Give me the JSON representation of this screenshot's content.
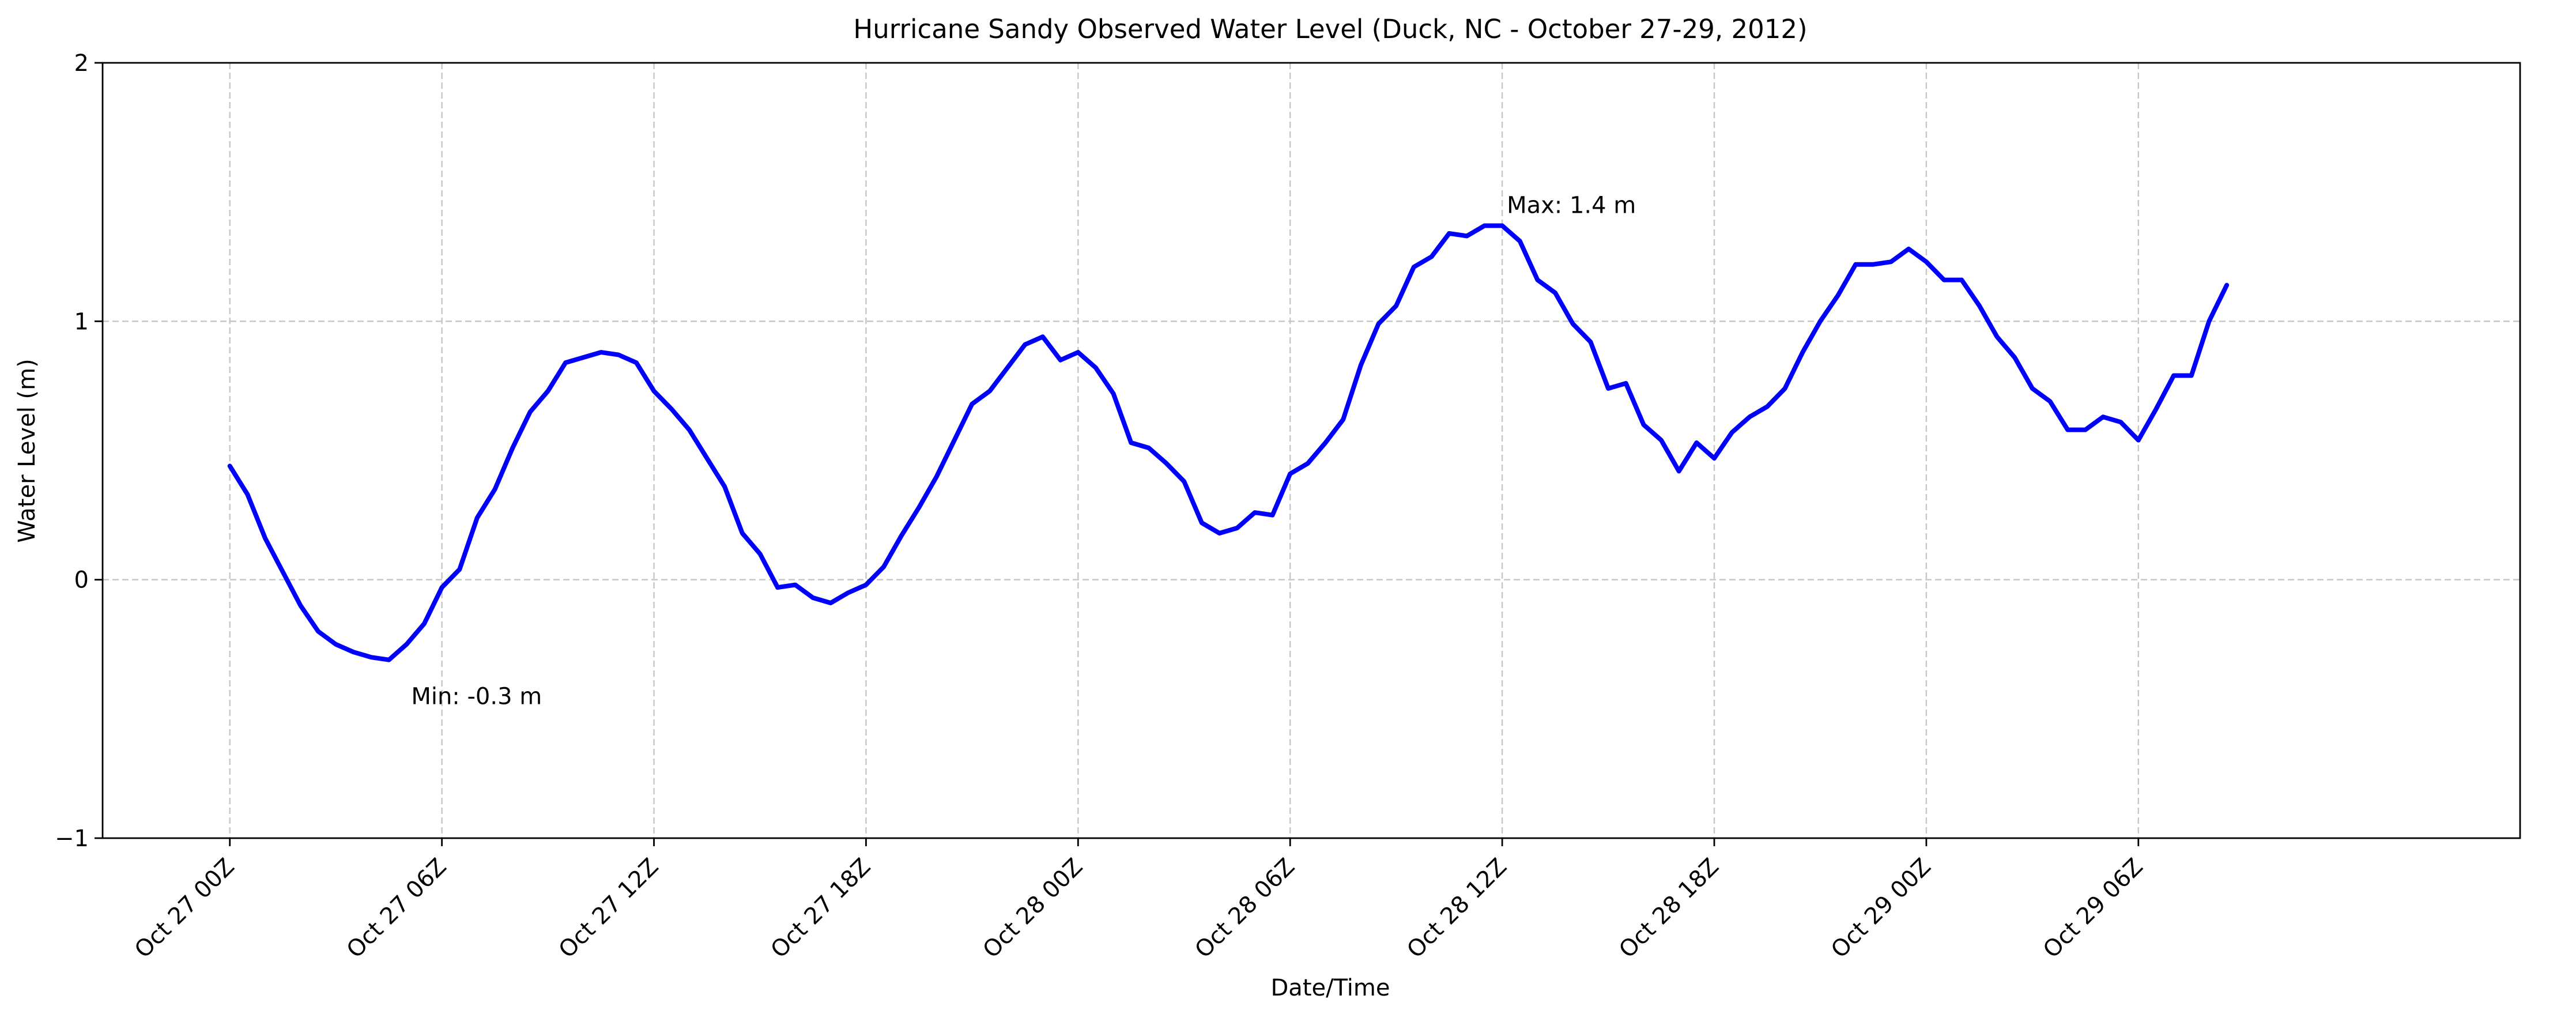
{
  "chart_data": {
    "type": "line",
    "title": "Hurricane Sandy Observed Water Level (Duck, NC - October 27-29, 2012)",
    "xlabel": "Date/Time",
    "ylabel": "Water Level (m)",
    "ylim": [
      -1,
      2
    ],
    "xlim": [
      "2012-10-26T20:24Z",
      "2012-10-29T16:48Z"
    ],
    "grid": true,
    "x_ticks": [
      "Oct 27 00Z",
      "Oct 27 06Z",
      "Oct 27 12Z",
      "Oct 27 18Z",
      "Oct 28 00Z",
      "Oct 28 06Z",
      "Oct 28 12Z",
      "Oct 28 18Z",
      "Oct 29 00Z",
      "Oct 29 06Z"
    ],
    "y_ticks": [
      "−1",
      "0",
      "1",
      "2"
    ],
    "series": [
      {
        "color": "#0000ff",
        "x": [
          "2012-10-27T00:00Z",
          "2012-10-27T00:30Z",
          "2012-10-27T01:00Z",
          "2012-10-27T01:30Z",
          "2012-10-27T02:00Z",
          "2012-10-27T02:30Z",
          "2012-10-27T03:00Z",
          "2012-10-27T03:30Z",
          "2012-10-27T04:00Z",
          "2012-10-27T04:30Z",
          "2012-10-27T05:00Z",
          "2012-10-27T05:30Z",
          "2012-10-27T06:00Z",
          "2012-10-27T06:30Z",
          "2012-10-27T07:00Z",
          "2012-10-27T07:30Z",
          "2012-10-27T08:00Z",
          "2012-10-27T08:30Z",
          "2012-10-27T09:00Z",
          "2012-10-27T09:30Z",
          "2012-10-27T10:00Z",
          "2012-10-27T10:30Z",
          "2012-10-27T11:00Z",
          "2012-10-27T11:30Z",
          "2012-10-27T12:00Z",
          "2012-10-27T12:30Z",
          "2012-10-27T13:00Z",
          "2012-10-27T13:30Z",
          "2012-10-27T14:00Z",
          "2012-10-27T14:30Z",
          "2012-10-27T15:00Z",
          "2012-10-27T15:30Z",
          "2012-10-27T16:00Z",
          "2012-10-27T16:30Z",
          "2012-10-27T17:00Z",
          "2012-10-27T17:30Z",
          "2012-10-27T18:00Z",
          "2012-10-27T18:30Z",
          "2012-10-27T19:00Z",
          "2012-10-27T19:30Z",
          "2012-10-27T20:00Z",
          "2012-10-27T20:30Z",
          "2012-10-27T21:00Z",
          "2012-10-27T21:30Z",
          "2012-10-27T22:00Z",
          "2012-10-27T22:30Z",
          "2012-10-27T23:00Z",
          "2012-10-27T23:30Z",
          "2012-10-28T00:00Z",
          "2012-10-28T00:30Z",
          "2012-10-28T01:00Z",
          "2012-10-28T01:30Z",
          "2012-10-28T02:00Z",
          "2012-10-28T02:30Z",
          "2012-10-28T03:00Z",
          "2012-10-28T03:30Z",
          "2012-10-28T04:00Z",
          "2012-10-28T04:30Z",
          "2012-10-28T05:00Z",
          "2012-10-28T05:30Z",
          "2012-10-28T06:00Z",
          "2012-10-28T06:30Z",
          "2012-10-28T07:00Z",
          "2012-10-28T07:30Z",
          "2012-10-28T08:00Z",
          "2012-10-28T08:30Z",
          "2012-10-28T09:00Z",
          "2012-10-28T09:30Z",
          "2012-10-28T10:00Z",
          "2012-10-28T10:30Z",
          "2012-10-28T11:00Z",
          "2012-10-28T11:30Z",
          "2012-10-28T12:00Z",
          "2012-10-28T12:30Z",
          "2012-10-28T13:00Z",
          "2012-10-28T13:30Z",
          "2012-10-28T14:00Z",
          "2012-10-28T14:30Z",
          "2012-10-28T15:00Z",
          "2012-10-28T15:30Z",
          "2012-10-28T16:00Z",
          "2012-10-28T16:30Z",
          "2012-10-28T17:00Z",
          "2012-10-28T17:30Z",
          "2012-10-28T18:00Z",
          "2012-10-28T18:30Z",
          "2012-10-28T19:00Z",
          "2012-10-28T19:30Z",
          "2012-10-28T20:00Z",
          "2012-10-28T20:30Z",
          "2012-10-28T21:00Z",
          "2012-10-28T21:30Z",
          "2012-10-28T22:00Z",
          "2012-10-28T22:30Z",
          "2012-10-28T23:00Z",
          "2012-10-28T23:30Z",
          "2012-10-29T00:00Z",
          "2012-10-29T00:30Z",
          "2012-10-29T01:00Z",
          "2012-10-29T01:30Z",
          "2012-10-29T02:00Z",
          "2012-10-29T02:30Z",
          "2012-10-29T03:00Z",
          "2012-10-29T03:30Z",
          "2012-10-29T04:00Z",
          "2012-10-29T04:30Z",
          "2012-10-29T05:00Z",
          "2012-10-29T05:30Z",
          "2012-10-29T06:00Z",
          "2012-10-29T06:30Z",
          "2012-10-29T07:00Z",
          "2012-10-29T07:30Z",
          "2012-10-29T08:00Z",
          "2012-10-29T08:30Z"
        ],
        "values": [
          0.44,
          0.33,
          0.16,
          0.03,
          -0.1,
          -0.2,
          -0.25,
          -0.28,
          -0.3,
          -0.31,
          -0.25,
          -0.17,
          -0.03,
          0.04,
          0.24,
          0.35,
          0.51,
          0.65,
          0.73,
          0.84,
          0.86,
          0.88,
          0.87,
          0.84,
          0.73,
          0.66,
          0.58,
          0.47,
          0.36,
          0.18,
          0.1,
          -0.03,
          -0.02,
          -0.07,
          -0.09,
          -0.05,
          -0.02,
          0.05,
          0.17,
          0.28,
          0.4,
          0.54,
          0.68,
          0.73,
          0.82,
          0.91,
          0.94,
          0.85,
          0.88,
          0.82,
          0.72,
          0.53,
          0.51,
          0.45,
          0.38,
          0.22,
          0.18,
          0.2,
          0.26,
          0.25,
          0.41,
          0.45,
          0.53,
          0.62,
          0.83,
          0.99,
          1.06,
          1.21,
          1.25,
          1.34,
          1.33,
          1.37,
          1.37,
          1.31,
          1.16,
          1.11,
          0.99,
          0.92,
          0.74,
          0.76,
          0.6,
          0.54,
          0.42,
          0.53,
          0.47,
          0.57,
          0.63,
          0.67,
          0.74,
          0.88,
          1.0,
          1.1,
          1.22,
          1.22,
          1.23,
          1.28,
          1.23,
          1.16,
          1.16,
          1.06,
          0.94,
          0.86,
          0.74,
          0.69,
          0.58,
          0.58,
          0.63,
          0.61,
          0.54,
          0.66,
          0.79,
          0.79,
          1.0,
          1.14
        ]
      }
    ],
    "annotations": [
      {
        "text": "Max: 1.4 m",
        "x": "2012-10-28T12:00Z",
        "y": 1.45
      },
      {
        "text": "Min: -0.3 m",
        "x": "2012-10-27T05:00Z",
        "y": -0.45
      }
    ]
  }
}
